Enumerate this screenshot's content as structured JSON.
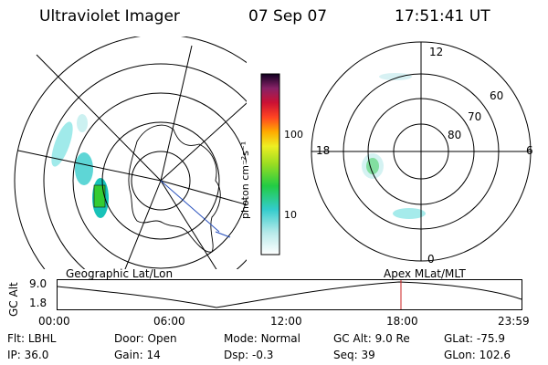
{
  "header": {
    "title": "Ultraviolet Imager",
    "date": "07 Sep 07",
    "time": "17:51:41 UT"
  },
  "colorbar": {
    "label": "photon cm⁻²s⁻¹",
    "ticks": [
      "100",
      "10"
    ]
  },
  "right_map": {
    "mlt_labels": {
      "top": "12",
      "left": "18",
      "right": "6",
      "bottom": "0"
    },
    "lat_labels": [
      "60",
      "70",
      "80"
    ]
  },
  "left_map": {
    "caption": "Geographic Lat/Lon"
  },
  "right_caption": "Apex MLat/MLT",
  "orbit_plot": {
    "ylabel": "GC Alt",
    "yticks": [
      "9.0",
      "1.8"
    ],
    "xticks": [
      "00:00",
      "06:00",
      "12:00",
      "18:00",
      "23:59"
    ],
    "marker_color": "#cc2222"
  },
  "status": {
    "row1": [
      {
        "label": "Flt:",
        "value": "LBHL"
      },
      {
        "label": "Door:",
        "value": "Open"
      },
      {
        "label": "Mode:",
        "value": "Normal"
      },
      {
        "label": "GC Alt:",
        "value": "9.0 Re"
      },
      {
        "label": "GLat:",
        "value": "-75.9"
      }
    ],
    "row2": [
      {
        "label": "IP:",
        "value": "36.0"
      },
      {
        "label": "Gain:",
        "value": "14"
      },
      {
        "label": "Dsp:",
        "value": "-0.3"
      },
      {
        "label": "Seq:",
        "value": "39"
      },
      {
        "label": "GLon:",
        "value": "102.6"
      }
    ]
  }
}
